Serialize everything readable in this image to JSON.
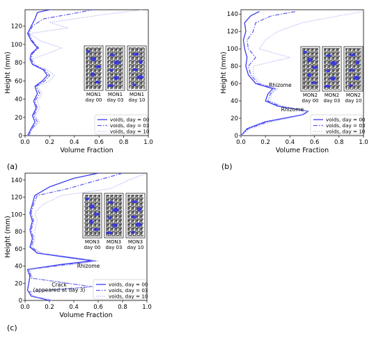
{
  "chart_data": [
    {
      "panel": "(a)",
      "type": "line",
      "xlabel": "Volume Fraction",
      "ylabel": "Height (mm)",
      "xlim": [
        0.0,
        1.0
      ],
      "ylim": [
        0,
        138
      ],
      "xticks": [
        "0.0",
        "0.2",
        "0.4",
        "0.6",
        "0.8",
        "1.0"
      ],
      "yticks": [
        0,
        20,
        40,
        60,
        80,
        100,
        120
      ],
      "legend_position": "lower-right",
      "colors": {
        "day00": "#3a3aef",
        "day03": "#5a5af2",
        "day10": "#9f9ff8"
      },
      "series": [
        {
          "name": "voids, day = 00",
          "style": "solid",
          "points": [
            [
              0.02,
              0
            ],
            [
              0.05,
              8
            ],
            [
              0.08,
              15
            ],
            [
              0.06,
              22
            ],
            [
              0.09,
              30
            ],
            [
              0.07,
              38
            ],
            [
              0.1,
              46
            ],
            [
              0.08,
              54
            ],
            [
              0.14,
              60
            ],
            [
              0.18,
              66
            ],
            [
              0.15,
              72
            ],
            [
              0.06,
              78
            ],
            [
              0.04,
              84
            ],
            [
              0.05,
              90
            ],
            [
              0.1,
              96
            ],
            [
              0.05,
              104
            ],
            [
              0.02,
              112
            ],
            [
              0.05,
              120
            ],
            [
              0.08,
              128
            ],
            [
              0.1,
              135
            ],
            [
              0.2,
              138
            ]
          ]
        },
        {
          "name": "voids, day = 03",
          "style": "dashdot",
          "points": [
            [
              0.03,
              0
            ],
            [
              0.06,
              8
            ],
            [
              0.1,
              15
            ],
            [
              0.07,
              22
            ],
            [
              0.1,
              30
            ],
            [
              0.08,
              38
            ],
            [
              0.12,
              46
            ],
            [
              0.09,
              54
            ],
            [
              0.16,
              60
            ],
            [
              0.2,
              66
            ],
            [
              0.16,
              72
            ],
            [
              0.07,
              78
            ],
            [
              0.05,
              84
            ],
            [
              0.06,
              90
            ],
            [
              0.11,
              96
            ],
            [
              0.06,
              104
            ],
            [
              0.03,
              112
            ],
            [
              0.06,
              120
            ],
            [
              0.15,
              128
            ],
            [
              0.4,
              134
            ],
            [
              0.55,
              138
            ]
          ]
        },
        {
          "name": "voids, day = 10",
          "style": "dotted",
          "points": [
            [
              0.02,
              0
            ],
            [
              0.06,
              8
            ],
            [
              0.12,
              15
            ],
            [
              0.08,
              22
            ],
            [
              0.12,
              30
            ],
            [
              0.1,
              38
            ],
            [
              0.14,
              46
            ],
            [
              0.1,
              54
            ],
            [
              0.2,
              60
            ],
            [
              0.24,
              66
            ],
            [
              0.18,
              72
            ],
            [
              0.08,
              78
            ],
            [
              0.06,
              84
            ],
            [
              0.18,
              90
            ],
            [
              0.3,
              96
            ],
            [
              0.12,
              104
            ],
            [
              0.04,
              112
            ],
            [
              0.35,
              118
            ],
            [
              0.2,
              124
            ],
            [
              0.6,
              132
            ],
            [
              0.95,
              138
            ]
          ]
        }
      ],
      "inset_labels": [
        [
          "MON1",
          "day 00"
        ],
        [
          "MON1",
          "day 03"
        ],
        [
          "MON1",
          "day 10"
        ]
      ],
      "annotations": []
    },
    {
      "panel": "(b)",
      "type": "line",
      "xlabel": "Volume Fraction",
      "ylabel": "Height (mm)",
      "xlim": [
        0.0,
        1.0
      ],
      "ylim": [
        0,
        145
      ],
      "xticks": [
        "0.0",
        "0.2",
        "0.4",
        "0.6",
        "0.8",
        "1.0"
      ],
      "yticks": [
        0,
        20,
        40,
        60,
        80,
        100,
        120,
        140
      ],
      "legend_position": "lower-right",
      "colors": {
        "day00": "#3a3aef",
        "day03": "#5a5af2",
        "day10": "#9f9ff8"
      },
      "series": [
        {
          "name": "voids, day = 00",
          "style": "solid",
          "points": [
            [
              0.0,
              0
            ],
            [
              0.05,
              8
            ],
            [
              0.2,
              16
            ],
            [
              0.5,
              24
            ],
            [
              0.55,
              28
            ],
            [
              0.3,
              34
            ],
            [
              0.2,
              40
            ],
            [
              0.22,
              48
            ],
            [
              0.26,
              54
            ],
            [
              0.12,
              60
            ],
            [
              0.06,
              70
            ],
            [
              0.04,
              80
            ],
            [
              0.05,
              90
            ],
            [
              0.03,
              100
            ],
            [
              0.02,
              110
            ],
            [
              0.04,
              120
            ],
            [
              0.03,
              130
            ],
            [
              0.08,
              138
            ],
            [
              0.15,
              143
            ]
          ]
        },
        {
          "name": "voids, day = 03",
          "style": "dashdot",
          "points": [
            [
              0.0,
              0
            ],
            [
              0.06,
              8
            ],
            [
              0.22,
              16
            ],
            [
              0.5,
              24
            ],
            [
              0.55,
              28
            ],
            [
              0.32,
              34
            ],
            [
              0.22,
              40
            ],
            [
              0.24,
              48
            ],
            [
              0.28,
              54
            ],
            [
              0.14,
              60
            ],
            [
              0.08,
              70
            ],
            [
              0.06,
              80
            ],
            [
              0.12,
              90
            ],
            [
              0.06,
              100
            ],
            [
              0.05,
              110
            ],
            [
              0.1,
              120
            ],
            [
              0.12,
              130
            ],
            [
              0.25,
              138
            ],
            [
              0.45,
              143
            ]
          ]
        },
        {
          "name": "voids, day = 10",
          "style": "dotted",
          "points": [
            [
              0.0,
              0
            ],
            [
              0.08,
              8
            ],
            [
              0.25,
              16
            ],
            [
              0.52,
              24
            ],
            [
              0.55,
              28
            ],
            [
              0.34,
              34
            ],
            [
              0.24,
              40
            ],
            [
              0.25,
              48
            ],
            [
              0.3,
              54
            ],
            [
              0.16,
              60
            ],
            [
              0.1,
              70
            ],
            [
              0.1,
              80
            ],
            [
              0.4,
              90
            ],
            [
              0.15,
              100
            ],
            [
              0.2,
              110
            ],
            [
              0.3,
              120
            ],
            [
              0.5,
              130
            ],
            [
              0.8,
              138
            ],
            [
              1.0,
              143
            ]
          ]
        }
      ],
      "inset_labels": [
        [
          "MON2",
          "day 00"
        ],
        [
          "MON2",
          "day 03"
        ],
        [
          "MON2",
          "day 10"
        ]
      ],
      "annotations": [
        {
          "text": "Rhizome",
          "x": 0.32,
          "y": 56
        },
        {
          "text": "Rhizome",
          "x": 0.42,
          "y": 28
        }
      ]
    },
    {
      "panel": "(c)",
      "type": "line",
      "xlabel": "Volume Fraction",
      "ylabel": "Height (mm)",
      "xlim": [
        0.0,
        1.0
      ],
      "ylim": [
        0,
        148
      ],
      "xticks": [
        "0.0",
        "0.2",
        "0.4",
        "0.6",
        "0.8",
        "1.0"
      ],
      "yticks": [
        0,
        20,
        40,
        60,
        80,
        100,
        120,
        140
      ],
      "legend_position": "lower-right",
      "colors": {
        "day00": "#3a3aef",
        "day03": "#5a5af2",
        "day10": "#9f9ff8"
      },
      "series": [
        {
          "name": "voids, day = 00",
          "style": "solid",
          "points": [
            [
              0.2,
              0
            ],
            [
              0.05,
              5
            ],
            [
              0.02,
              12
            ],
            [
              0.03,
              20
            ],
            [
              0.04,
              28
            ],
            [
              0.02,
              36
            ],
            [
              0.3,
              42
            ],
            [
              0.55,
              46
            ],
            [
              0.35,
              50
            ],
            [
              0.1,
              55
            ],
            [
              0.04,
              62
            ],
            [
              0.06,
              72
            ],
            [
              0.04,
              82
            ],
            [
              0.06,
              92
            ],
            [
              0.04,
              102
            ],
            [
              0.06,
              112
            ],
            [
              0.08,
              122
            ],
            [
              0.2,
              132
            ],
            [
              0.4,
              142
            ],
            [
              0.6,
              148
            ]
          ]
        },
        {
          "name": "voids, day = 03",
          "style": "dashdot",
          "points": [
            [
              0.22,
              0
            ],
            [
              0.06,
              5
            ],
            [
              0.03,
              10
            ],
            [
              0.55,
              16
            ],
            [
              0.35,
              20
            ],
            [
              0.05,
              26
            ],
            [
              0.04,
              32
            ],
            [
              0.03,
              36
            ],
            [
              0.35,
              42
            ],
            [
              0.58,
              46
            ],
            [
              0.38,
              50
            ],
            [
              0.12,
              55
            ],
            [
              0.05,
              62
            ],
            [
              0.07,
              72
            ],
            [
              0.05,
              82
            ],
            [
              0.07,
              92
            ],
            [
              0.05,
              102
            ],
            [
              0.07,
              112
            ],
            [
              0.1,
              122
            ],
            [
              0.35,
              130
            ],
            [
              0.6,
              140
            ],
            [
              0.8,
              148
            ]
          ]
        },
        {
          "name": "voids, day = 10",
          "style": "dotted",
          "points": [
            [
              0.22,
              0
            ],
            [
              0.07,
              5
            ],
            [
              0.04,
              10
            ],
            [
              0.56,
              16
            ],
            [
              0.36,
              20
            ],
            [
              0.06,
              26
            ],
            [
              0.05,
              32
            ],
            [
              0.04,
              36
            ],
            [
              0.4,
              42
            ],
            [
              0.6,
              46
            ],
            [
              0.4,
              50
            ],
            [
              0.14,
              55
            ],
            [
              0.06,
              62
            ],
            [
              0.08,
              72
            ],
            [
              0.08,
              82
            ],
            [
              0.1,
              92
            ],
            [
              0.08,
              102
            ],
            [
              0.15,
              112
            ],
            [
              0.3,
              122
            ],
            [
              0.7,
              130
            ],
            [
              0.85,
              140
            ],
            [
              1.0,
              148
            ]
          ]
        }
      ],
      "inset_labels": [
        [
          "MON3",
          "day 00"
        ],
        [
          "MON3",
          "day 03"
        ],
        [
          "MON3",
          "day 10"
        ]
      ],
      "annotations": [
        {
          "text": "Rhizome",
          "x": 0.52,
          "y": 38
        },
        {
          "text": "Crack",
          "x": 0.28,
          "y": 16
        },
        {
          "text": "(appeared at day 3)",
          "x": 0.28,
          "y": 10
        }
      ]
    }
  ]
}
